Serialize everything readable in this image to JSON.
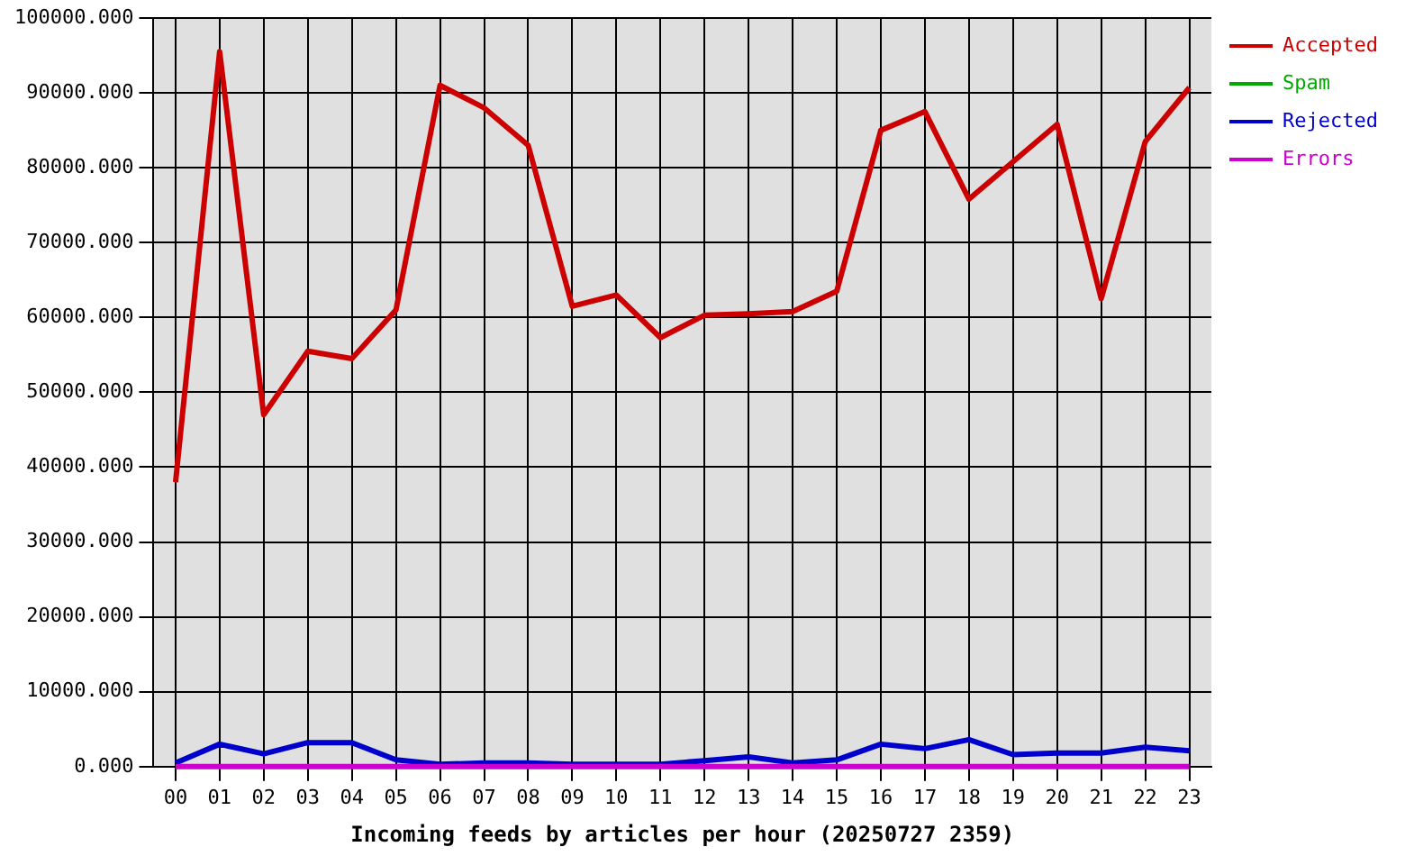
{
  "chart_data": {
    "type": "line",
    "xlabel": "Incoming feeds by articles per hour (20250727 2359)",
    "categories": [
      "00",
      "01",
      "02",
      "03",
      "04",
      "05",
      "06",
      "07",
      "08",
      "09",
      "10",
      "11",
      "12",
      "13",
      "14",
      "15",
      "16",
      "17",
      "18",
      "19",
      "20",
      "21",
      "22",
      "23"
    ],
    "series": [
      {
        "name": "Accepted",
        "color": "#cc0000",
        "values": [
          38000,
          95500,
          47000,
          55500,
          54500,
          61000,
          91000,
          88000,
          83000,
          61500,
          63000,
          57300,
          60300,
          60500,
          60800,
          63500,
          85000,
          87500,
          75800,
          80800,
          85800,
          62500,
          83500,
          90700
        ]
      },
      {
        "name": "Spam",
        "color": "#00aa00",
        "values": [
          null,
          null,
          null,
          null,
          null,
          null,
          null,
          null,
          null,
          null,
          null,
          null,
          null,
          null,
          null,
          null,
          null,
          null,
          null,
          null,
          null,
          null,
          null,
          null
        ]
      },
      {
        "name": "Rejected",
        "color": "#0000cc",
        "values": [
          500,
          3000,
          1700,
          3200,
          3200,
          900,
          300,
          500,
          500,
          300,
          300,
          300,
          800,
          1300,
          500,
          900,
          3000,
          2400,
          3600,
          1600,
          1800,
          1800,
          2600,
          2100
        ]
      },
      {
        "name": "Errors",
        "color": "#cc00cc",
        "values": [
          0,
          0,
          0,
          0,
          0,
          0,
          0,
          0,
          0,
          0,
          0,
          0,
          0,
          0,
          0,
          0,
          0,
          0,
          0,
          0,
          0,
          0,
          0,
          0
        ]
      }
    ],
    "ylim": [
      0,
      100000
    ],
    "yticks": [
      {
        "value": 0,
        "label": "0.000"
      },
      {
        "value": 10000,
        "label": "10000.000"
      },
      {
        "value": 20000,
        "label": "20000.000"
      },
      {
        "value": 30000,
        "label": "30000.000"
      },
      {
        "value": 40000,
        "label": "40000.000"
      },
      {
        "value": 50000,
        "label": "50000.000"
      },
      {
        "value": 60000,
        "label": "60000.000"
      },
      {
        "value": 70000,
        "label": "70000.000"
      },
      {
        "value": 80000,
        "label": "80000.000"
      },
      {
        "value": 90000,
        "label": "90000.000"
      },
      {
        "value": 100000,
        "label": "100000.000"
      }
    ],
    "grid": true,
    "legend": "top right",
    "marker": "none",
    "line_style": "solid"
  }
}
